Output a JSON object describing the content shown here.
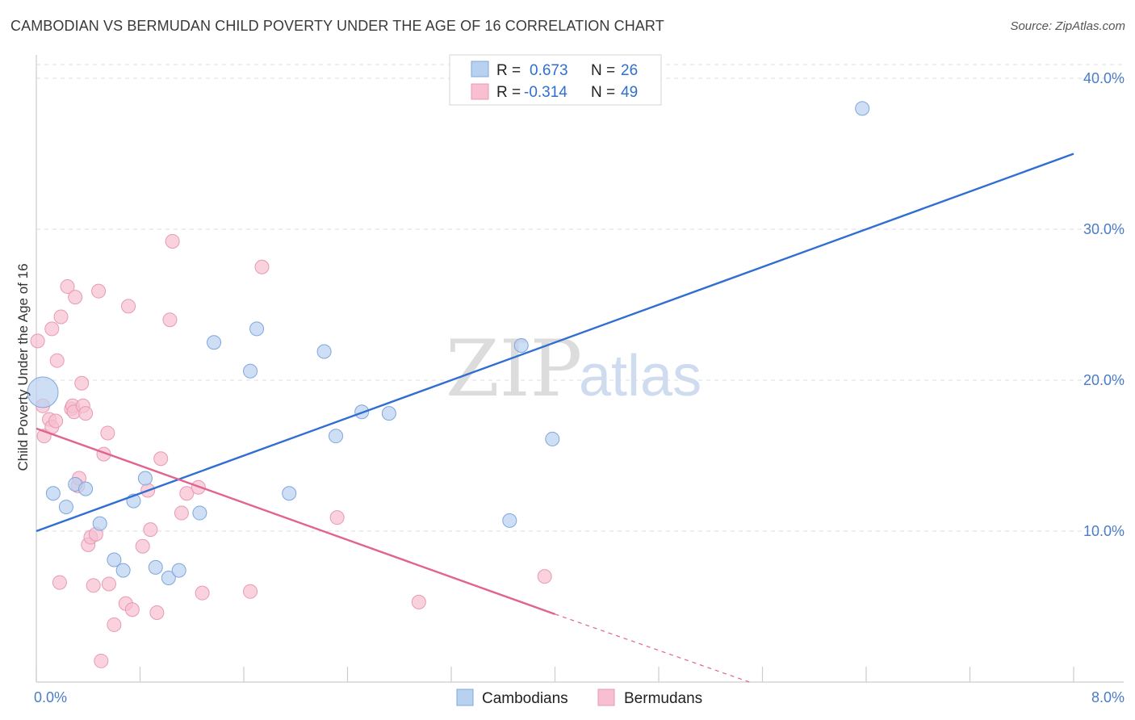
{
  "title": "CAMBODIAN VS BERMUDAN CHILD POVERTY UNDER THE AGE OF 16 CORRELATION CHART",
  "source": "Source: ZipAtlas.com",
  "watermark": {
    "zip": "ZIP",
    "atlas": "atlas"
  },
  "colors": {
    "blue": "#2f6fd1",
    "blue_fill": "#b9d1f1",
    "pink": "#e0648f",
    "pink_fill": "#f7bfd0",
    "tick": "#4a7cc7"
  },
  "legend": {
    "rows": [
      {
        "r_label": "R = ",
        "r_value": "0.673",
        "n_label": "N = ",
        "n_value": "26"
      },
      {
        "r_label": "R = ",
        "r_value": "-0.314",
        "n_label": "N = ",
        "n_value": "49"
      }
    ]
  },
  "chart_data": {
    "type": "scatter",
    "title": "CAMBODIAN VS BERMUDAN CHILD POVERTY UNDER THE AGE OF 16 CORRELATION CHART",
    "xlabel": "",
    "ylabel": "Child Poverty Under the Age of 16",
    "xlim": [
      0,
      8
    ],
    "ylim": [
      0,
      40
    ],
    "x_tick_labels": [
      "0.0%",
      "8.0%"
    ],
    "y_ticks": [
      10,
      20,
      30,
      40
    ],
    "y_tick_labels": [
      "10.0%",
      "20.0%",
      "30.0%",
      "40.0%"
    ],
    "legend_position": "top-center",
    "series": [
      {
        "name": "Cambodians",
        "color": "#2f6fd1",
        "r": 0.673,
        "n": 26,
        "trend": {
          "x": [
            0.0,
            8.0
          ],
          "y": [
            10.0,
            35.0
          ]
        },
        "points": [
          {
            "x": 0.05,
            "y": 19.2,
            "big": true
          },
          {
            "x": 0.13,
            "y": 12.5
          },
          {
            "x": 0.23,
            "y": 11.6
          },
          {
            "x": 0.3,
            "y": 13.1
          },
          {
            "x": 0.38,
            "y": 12.8
          },
          {
            "x": 0.49,
            "y": 10.5
          },
          {
            "x": 0.6,
            "y": 8.1
          },
          {
            "x": 0.67,
            "y": 7.4
          },
          {
            "x": 0.75,
            "y": 12.0
          },
          {
            "x": 0.84,
            "y": 13.5
          },
          {
            "x": 0.92,
            "y": 7.6
          },
          {
            "x": 1.02,
            "y": 6.9
          },
          {
            "x": 1.1,
            "y": 7.4
          },
          {
            "x": 1.26,
            "y": 11.2
          },
          {
            "x": 1.37,
            "y": 22.5
          },
          {
            "x": 1.65,
            "y": 20.6
          },
          {
            "x": 1.7,
            "y": 23.4
          },
          {
            "x": 1.95,
            "y": 12.5
          },
          {
            "x": 2.22,
            "y": 21.9
          },
          {
            "x": 2.31,
            "y": 16.3
          },
          {
            "x": 2.51,
            "y": 17.9
          },
          {
            "x": 2.72,
            "y": 17.8
          },
          {
            "x": 3.65,
            "y": 10.7
          },
          {
            "x": 3.74,
            "y": 22.3
          },
          {
            "x": 3.98,
            "y": 16.1
          },
          {
            "x": 6.37,
            "y": 38.0
          }
        ]
      },
      {
        "name": "Bermudans",
        "color": "#e0648f",
        "r": -0.314,
        "n": 49,
        "trend": {
          "x": [
            0.0,
            4.0
          ],
          "y": [
            16.8,
            4.5
          ]
        },
        "trend_dashed": {
          "x": [
            4.0,
            5.5
          ],
          "y": [
            4.5,
            0.0
          ]
        },
        "points": [
          {
            "x": 0.01,
            "y": 22.6
          },
          {
            "x": 0.05,
            "y": 18.3
          },
          {
            "x": 0.06,
            "y": 16.3
          },
          {
            "x": 0.1,
            "y": 17.4
          },
          {
            "x": 0.12,
            "y": 16.9
          },
          {
            "x": 0.12,
            "y": 23.4
          },
          {
            "x": 0.15,
            "y": 17.3
          },
          {
            "x": 0.16,
            "y": 21.3
          },
          {
            "x": 0.18,
            "y": 6.6
          },
          {
            "x": 0.19,
            "y": 24.2
          },
          {
            "x": 0.24,
            "y": 26.2
          },
          {
            "x": 0.27,
            "y": 18.1
          },
          {
            "x": 0.28,
            "y": 18.3
          },
          {
            "x": 0.29,
            "y": 17.9
          },
          {
            "x": 0.3,
            "y": 25.5
          },
          {
            "x": 0.32,
            "y": 13.0
          },
          {
            "x": 0.33,
            "y": 13.5
          },
          {
            "x": 0.35,
            "y": 19.8
          },
          {
            "x": 0.36,
            "y": 18.3
          },
          {
            "x": 0.38,
            "y": 17.8
          },
          {
            "x": 0.4,
            "y": 9.1
          },
          {
            "x": 0.42,
            "y": 9.6
          },
          {
            "x": 0.44,
            "y": 6.4
          },
          {
            "x": 0.46,
            "y": 9.8
          },
          {
            "x": 0.48,
            "y": 25.9
          },
          {
            "x": 0.5,
            "y": 1.4
          },
          {
            "x": 0.52,
            "y": 15.1
          },
          {
            "x": 0.55,
            "y": 16.5
          },
          {
            "x": 0.56,
            "y": 6.5
          },
          {
            "x": 0.6,
            "y": 3.8
          },
          {
            "x": 0.69,
            "y": 5.2
          },
          {
            "x": 0.71,
            "y": 24.9
          },
          {
            "x": 0.74,
            "y": 4.8
          },
          {
            "x": 0.82,
            "y": 9.0
          },
          {
            "x": 0.86,
            "y": 12.7
          },
          {
            "x": 0.88,
            "y": 10.1
          },
          {
            "x": 0.93,
            "y": 4.6
          },
          {
            "x": 0.96,
            "y": 14.8
          },
          {
            "x": 1.03,
            "y": 24.0
          },
          {
            "x": 1.05,
            "y": 29.2
          },
          {
            "x": 1.12,
            "y": 11.2
          },
          {
            "x": 1.16,
            "y": 12.5
          },
          {
            "x": 1.25,
            "y": 12.9
          },
          {
            "x": 1.28,
            "y": 5.9
          },
          {
            "x": 1.65,
            "y": 6.0
          },
          {
            "x": 1.74,
            "y": 27.5
          },
          {
            "x": 2.32,
            "y": 10.9
          },
          {
            "x": 2.95,
            "y": 5.3
          },
          {
            "x": 3.92,
            "y": 7.0
          }
        ]
      }
    ]
  },
  "bottom_legend": {
    "items": [
      {
        "label": "Cambodians"
      },
      {
        "label": "Bermudans"
      }
    ]
  }
}
